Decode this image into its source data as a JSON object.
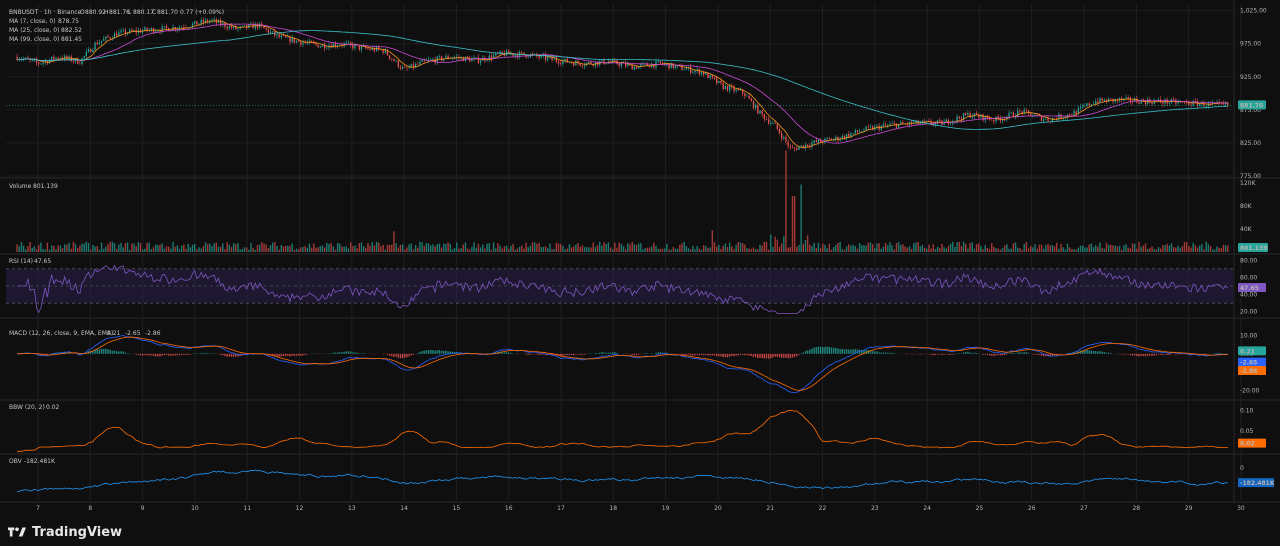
{
  "brand": {
    "name": "TradingView"
  },
  "header": {
    "symbol": "BNBUSDT · 1h · Binance",
    "o_label": "O",
    "o_value": "880.92",
    "h_label": "H",
    "h_value": "881.76",
    "l_label": "L",
    "l_value": "880.17",
    "c_label": "C",
    "c_value": "881.70",
    "change": "0.77 (+0.09%)"
  },
  "ma_legend": [
    {
      "label": "MA (7, close, 0)",
      "value": "878.75",
      "color": "#f7931a"
    },
    {
      "label": "MA (25, close, 0)",
      "value": "882.52",
      "color": "#c84bd1"
    },
    {
      "label": "MA (99, close, 0)",
      "value": "881.45",
      "color": "#39c2c9"
    }
  ],
  "colors": {
    "up": "#26a69a",
    "down": "#ef5350",
    "background": "#0f0f10",
    "grid": "#1f1f22",
    "rsi_line": "#7e57c2",
    "rsi_band": "#2a1f48",
    "macd": "#2962ff",
    "signal": "#ff6d00",
    "bbw": "#ff6d00",
    "obv": "#2196f3"
  },
  "chart_data": [
    {
      "type": "candlestick",
      "panel": "price",
      "title": "BNBUSDT · 1h · Binance",
      "x_tick_labels": [
        "7",
        "8",
        "9",
        "10",
        "11",
        "12",
        "13",
        "14",
        "15",
        "16",
        "17",
        "18",
        "19",
        "20",
        "21",
        "22",
        "23",
        "24",
        "25",
        "26",
        "27",
        "28",
        "29",
        "30"
      ],
      "y_tick_labels": [
        "1,025.00",
        "975.00",
        "925.00",
        "875.00",
        "825.00",
        "775.00"
      ],
      "ylim": [
        775,
        1032
      ],
      "last_price": "881.70",
      "close_path": {
        "days": [
          6.6,
          7.0,
          7.4,
          7.8,
          8.1,
          8.5,
          9.0,
          9.5,
          9.9,
          10.3,
          10.8,
          11.2,
          11.6,
          12.0,
          12.4,
          12.8,
          13.2,
          13.6,
          14.0,
          14.4,
          14.9,
          15.4,
          15.9,
          16.4,
          16.9,
          17.4,
          17.9,
          18.4,
          18.9,
          19.3,
          19.7,
          20.1,
          20.5,
          20.8,
          21.1,
          21.4,
          21.8,
          22.3,
          22.8,
          23.3,
          23.8,
          24.3,
          24.8,
          25.3,
          25.8,
          26.3,
          26.8,
          27.2,
          27.7,
          28.2,
          28.6,
          29.0,
          29.4,
          29.75
        ],
        "closes": [
          955,
          945,
          955,
          948,
          975,
          990,
          995,
          998,
          1003,
          1010,
          997,
          1003,
          985,
          978,
          972,
          975,
          968,
          965,
          935,
          948,
          955,
          950,
          960,
          958,
          950,
          945,
          948,
          940,
          945,
          938,
          932,
          910,
          900,
          870,
          850,
          815,
          825,
          832,
          845,
          852,
          855,
          855,
          868,
          860,
          872,
          860,
          870,
          888,
          890,
          888,
          887,
          885,
          883,
          881.7
        ]
      }
    },
    {
      "type": "line",
      "panel": "price-ma",
      "series": [
        {
          "name": "MA (7, close, 0)",
          "period": 7,
          "last": "878.75"
        },
        {
          "name": "MA (25, close, 0)",
          "period": 25,
          "last": "882.52"
        },
        {
          "name": "MA (99, close, 0)",
          "period": 99,
          "last": "881.45"
        }
      ]
    },
    {
      "type": "bar",
      "panel": "volume",
      "title": "Volume",
      "legend_value": "801.139",
      "last_value": "801.139",
      "y_tick_labels": [
        "120K",
        "80K",
        "40K"
      ],
      "ylim": [
        0,
        125000
      ],
      "typical": 12000,
      "spikes": [
        {
          "day": 21.3,
          "value": 98000
        },
        {
          "day": 21.6,
          "value": 65000
        },
        {
          "day": 21.45,
          "value": 54000
        },
        {
          "day": 19.9,
          "value": 38000
        },
        {
          "day": 13.8,
          "value": 36000
        }
      ]
    },
    {
      "type": "line",
      "panel": "rsi",
      "title": "RSI (14)",
      "legend_value": "47.65",
      "last_value": "47.65",
      "y_tick_labels": [
        "80.00",
        "60.00",
        "40.00",
        "20.00"
      ],
      "ylim": [
        15,
        85
      ],
      "bands": [
        30,
        50,
        70
      ]
    },
    {
      "type": "bar+line",
      "panel": "macd",
      "title": "MACD (12, 26, close, 9, EMA, EMA)",
      "legend_values": [
        "0.21",
        "-2.65",
        "-2.86"
      ],
      "y_tick_labels": [
        "10.00",
        "0.00",
        "-10.00",
        "-20.00"
      ],
      "ylim": [
        -24,
        14
      ],
      "last_values": [
        "0.21",
        "-2.65",
        "-2.86"
      ]
    },
    {
      "type": "line",
      "panel": "bbw",
      "title": "BBW (20, 2)",
      "legend_value": "0.02",
      "last_value": "0.02",
      "y_tick_labels": [
        "0.10",
        "0.05"
      ],
      "ylim": [
        0,
        0.12
      ]
    },
    {
      "type": "line",
      "panel": "obv",
      "title": "OBV",
      "legend_value": "-182.481K",
      "last_value": "-182.481K",
      "y_tick_labels": [
        "0"
      ]
    }
  ]
}
